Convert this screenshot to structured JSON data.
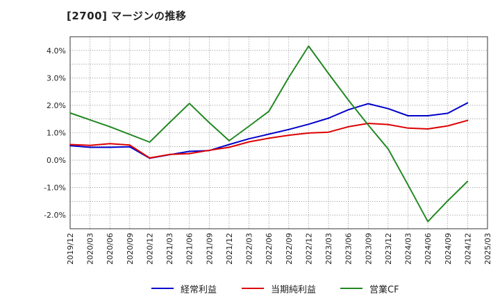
{
  "page": {
    "title": "[2700]  マージンの推移"
  },
  "chart_data": {
    "type": "line",
    "title": "[2700]  マージンの推移",
    "x": [
      "2019/12",
      "2020/03",
      "2020/06",
      "2020/09",
      "2020/12",
      "2021/03",
      "2021/06",
      "2021/09",
      "2021/12",
      "2022/03",
      "2022/06",
      "2022/09",
      "2022/12",
      "2023/03",
      "2023/06",
      "2023/09",
      "2023/12",
      "2024/03",
      "2024/06",
      "2024/09",
      "2024/12",
      "2025/03"
    ],
    "ylim": [
      -2.5,
      4.5
    ],
    "yticks": [
      4.0,
      3.0,
      2.0,
      1.0,
      0.0,
      -1.0,
      -2.0
    ],
    "ytick_labels": [
      "4.0%",
      "3.0%",
      "2.0%",
      "1.0%",
      "0.0%",
      "-1.0%",
      "-2.0%"
    ],
    "grid": true,
    "legend_position": "bottom",
    "series": [
      {
        "name": "経常利益",
        "color": "#0000cc",
        "values": [
          0.53,
          0.47,
          0.47,
          0.49,
          0.07,
          0.2,
          0.32,
          0.35,
          0.57,
          0.78,
          0.95,
          1.12,
          1.31,
          1.53,
          1.84,
          2.06,
          1.88,
          1.62,
          1.62,
          1.71,
          2.09,
          null
        ]
      },
      {
        "name": "当期純利益",
        "color": "#dd0000",
        "values": [
          0.57,
          0.54,
          0.6,
          0.55,
          0.08,
          0.21,
          0.24,
          0.36,
          0.47,
          0.67,
          0.8,
          0.91,
          0.99,
          1.02,
          1.22,
          1.34,
          1.3,
          1.17,
          1.14,
          1.25,
          1.45,
          null
        ]
      },
      {
        "name": "営業CF",
        "color": "#228822",
        "values": [
          1.72,
          1.47,
          1.22,
          0.94,
          0.66,
          1.37,
          2.07,
          1.37,
          0.71,
          1.24,
          1.78,
          3.02,
          4.16,
          3.16,
          2.19,
          1.28,
          0.41,
          -0.9,
          -2.24,
          -1.48,
          -0.77,
          null
        ]
      }
    ]
  }
}
